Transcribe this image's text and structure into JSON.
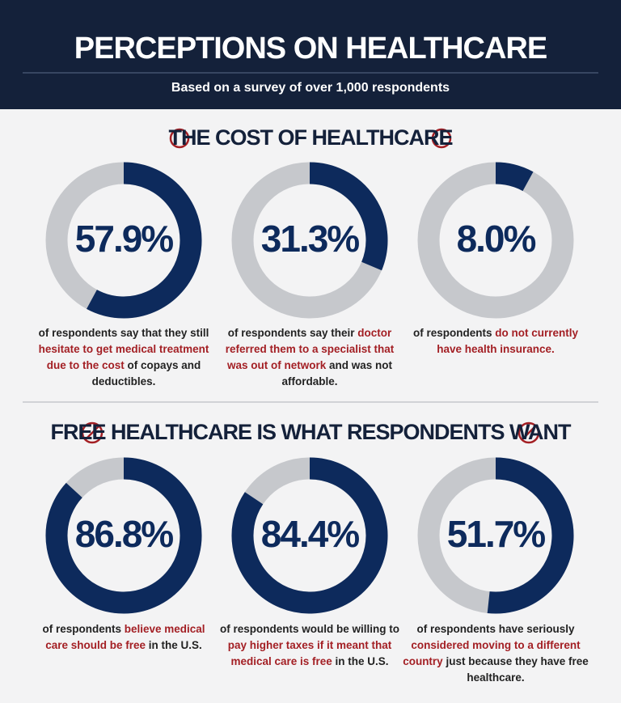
{
  "header": {
    "title": "PERCEPTIONS ON HEALTHCARE",
    "subtitle": "Based on a survey of over 1,000 respondents"
  },
  "sections": [
    {
      "title": "THE COST OF HEALTHCARE"
    },
    {
      "title": "FREE HEALTHCARE IS WHAT RESPONDENTS WANT"
    }
  ],
  "chart_data": [
    {
      "type": "donut",
      "values": [
        57.9
      ],
      "value_labels": [
        "57.9%"
      ],
      "color": "#0d2a5c",
      "track_color": "#c6c8cc",
      "highlight_color": "#a31f24",
      "caption": [
        {
          "text": "of respondents say that they still "
        },
        {
          "text": "hesitate to get medical treatment due to the cost",
          "highlight": true
        },
        {
          "text": " of copays and deductibles."
        }
      ]
    },
    {
      "type": "donut",
      "values": [
        31.3
      ],
      "value_labels": [
        "31.3%"
      ],
      "color": "#0d2a5c",
      "track_color": "#c6c8cc",
      "highlight_color": "#a31f24",
      "caption": [
        {
          "text": "of respondents say their "
        },
        {
          "text": "doctor referred them to a specialist that was out of network",
          "highlight": true
        },
        {
          "text": " and was not affordable."
        }
      ]
    },
    {
      "type": "donut",
      "values": [
        8.0
      ],
      "value_labels": [
        "8.0%"
      ],
      "color": "#0d2a5c",
      "track_color": "#c6c8cc",
      "highlight_color": "#a31f24",
      "caption": [
        {
          "text": "of respondents "
        },
        {
          "text": "do not currently have health insurance.",
          "highlight": true
        }
      ]
    },
    {
      "type": "donut",
      "values": [
        86.8
      ],
      "value_labels": [
        "86.8%"
      ],
      "color": "#0d2a5c",
      "track_color": "#c6c8cc",
      "highlight_color": "#a31f24",
      "caption": [
        {
          "text": "of respondents "
        },
        {
          "text": "believe medical care should be free",
          "highlight": true
        },
        {
          "text": " in the U.S."
        }
      ]
    },
    {
      "type": "donut",
      "values": [
        84.4
      ],
      "value_labels": [
        "84.4%"
      ],
      "color": "#0d2a5c",
      "track_color": "#c6c8cc",
      "highlight_color": "#a31f24",
      "caption": [
        {
          "text": "of respondents would be willing to "
        },
        {
          "text": "pay higher taxes if it meant that medical care is free",
          "highlight": true
        },
        {
          "text": " in the U.S."
        }
      ]
    },
    {
      "type": "donut",
      "values": [
        51.7
      ],
      "value_labels": [
        "51.7%"
      ],
      "color": "#0d2a5c",
      "track_color": "#c6c8cc",
      "highlight_color": "#a31f24",
      "caption": [
        {
          "text": "of respondents have seriously "
        },
        {
          "text": "considered moving to a different country",
          "highlight": true
        },
        {
          "text": " just because they have free healthcare."
        }
      ]
    }
  ]
}
